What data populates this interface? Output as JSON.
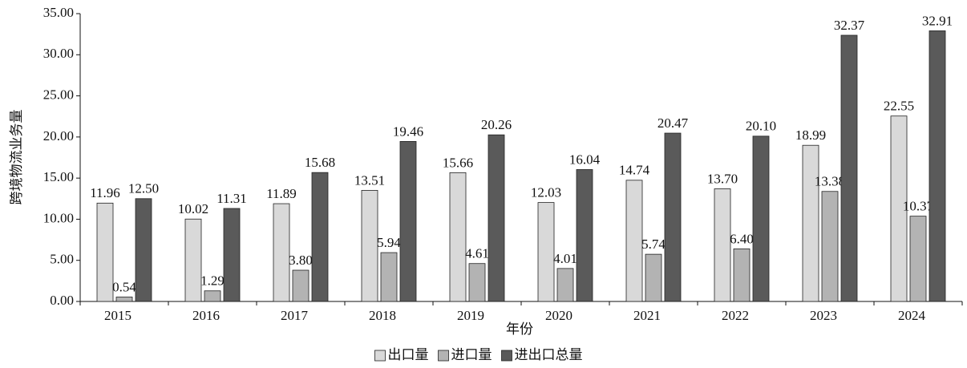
{
  "chart_data": {
    "type": "bar",
    "x_label": "年份",
    "y_label": "跨境物流业务量",
    "categories": [
      "2015",
      "2016",
      "2017",
      "2018",
      "2019",
      "2020",
      "2021",
      "2022",
      "2023",
      "2024"
    ],
    "series": [
      {
        "name": "出口量",
        "color": "#d9d9d9",
        "values": [
          11.96,
          10.02,
          11.89,
          13.51,
          15.66,
          12.03,
          14.74,
          13.7,
          18.99,
          22.55
        ],
        "value_labels": [
          "11.96",
          "10.02",
          "11.89",
          "13.51",
          "15.66",
          "12.03",
          "14.74",
          "13.70",
          "18.99",
          "22.55"
        ]
      },
      {
        "name": "进口量",
        "color": "#b3b3b3",
        "values": [
          0.54,
          1.29,
          3.8,
          5.94,
          4.61,
          4.01,
          5.74,
          6.4,
          13.38,
          10.37
        ],
        "value_labels": [
          "0.54",
          "1.29",
          "3.80",
          "5.94",
          "4.61",
          "4.01",
          "5.74",
          "6.40",
          "13.38",
          "10.37"
        ]
      },
      {
        "name": "进出口总量",
        "color": "#5a5a5a",
        "values": [
          12.5,
          11.31,
          15.68,
          19.46,
          20.26,
          16.04,
          20.47,
          20.1,
          32.37,
          32.91
        ],
        "value_labels": [
          "12.50",
          "11.31",
          "15.68",
          "19.46",
          "20.26",
          "16.04",
          "20.47",
          "20.10",
          "32.37",
          "32.91"
        ]
      }
    ],
    "ylim": [
      0,
      35
    ],
    "yticks": [
      {
        "value": 0,
        "label": "0.00"
      },
      {
        "value": 5,
        "label": "5.00"
      },
      {
        "value": 10,
        "label": "10.00"
      },
      {
        "value": 15,
        "label": "15.00"
      },
      {
        "value": 20,
        "label": "20.00"
      },
      {
        "value": 25,
        "label": "25.00"
      },
      {
        "value": 30,
        "label": "30.00"
      },
      {
        "value": 35,
        "label": "35.00"
      }
    ],
    "grid": false,
    "legend": "bottom"
  }
}
